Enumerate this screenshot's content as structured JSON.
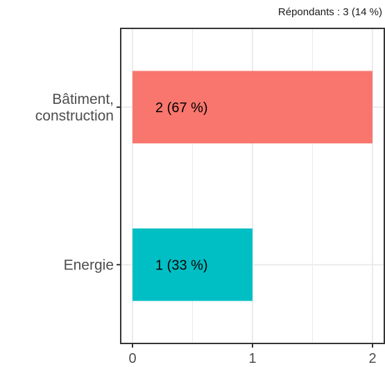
{
  "chart_data": {
    "type": "bar",
    "orientation": "horizontal",
    "subtitle": "Répondants : 3 (14 %)",
    "categories": [
      "Bâtiment,\nconstruction",
      "Energie"
    ],
    "values": [
      2,
      1
    ],
    "data_labels": [
      "2 (67 %)",
      "1 (33 %)"
    ],
    "colors": [
      "#F8766D",
      "#00BFC4"
    ],
    "xlim": [
      0,
      2
    ],
    "xticks": [
      0,
      1,
      2
    ],
    "xtick_labels": [
      "0",
      "1",
      "2"
    ],
    "grid": true,
    "legend": "none"
  }
}
